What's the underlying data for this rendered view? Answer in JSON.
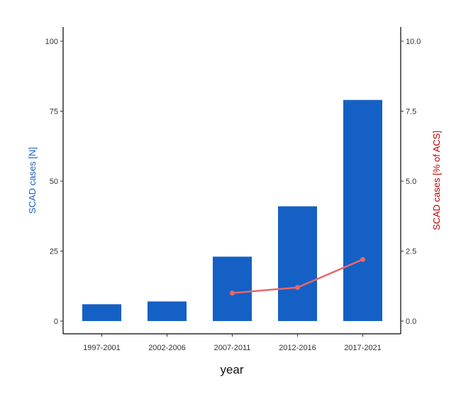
{
  "chart_data": {
    "type": "bar",
    "categories": [
      "1997-2001",
      "2002-2006",
      "2007-2011",
      "2012-2016",
      "2017-2021"
    ],
    "series": [
      {
        "values": [
          6,
          7,
          23,
          41,
          79
        ],
        "axis": "left",
        "kind": "bar",
        "color": "#1560c4"
      },
      {
        "values": [
          null,
          null,
          1.0,
          1.2,
          2.2
        ],
        "axis": "right",
        "kind": "line",
        "color": "#e8676a"
      }
    ],
    "xlabel": "year",
    "ylabel": "SCAD cases [N]",
    "ylabel_right": "SCAD cases [% of ACS]",
    "ylabel_color": "#1560c4",
    "ylabel_right_color": "#c00000",
    "ylim": [
      0,
      100
    ],
    "ylim_right": [
      0,
      10
    ],
    "yticks": [
      "0",
      "25",
      "50",
      "75",
      "100"
    ],
    "yticks_right": [
      "0.0",
      "2.5",
      "5.0",
      "7.5",
      "10.0"
    ],
    "grid": false
  }
}
